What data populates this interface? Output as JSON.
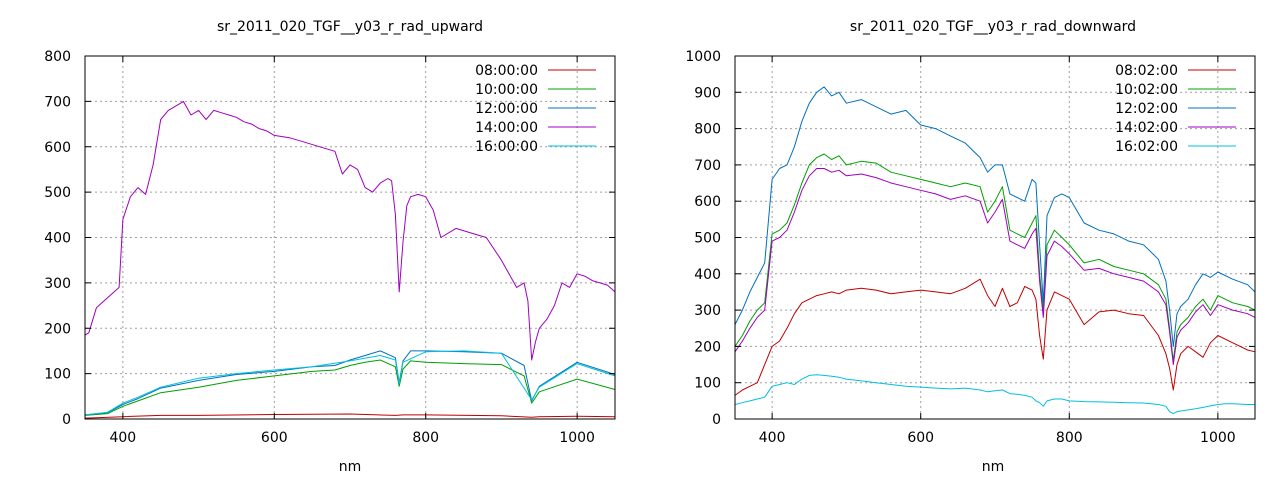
{
  "chart_data": [
    {
      "type": "line",
      "title": "sr_2011_020_TGF__y03_r_rad_upward",
      "xlabel": "nm",
      "ylabel": "",
      "xlim": [
        350,
        1050
      ],
      "ylim": [
        0,
        800
      ],
      "xticks": [
        400,
        600,
        800,
        1000
      ],
      "yticks": [
        0,
        100,
        200,
        300,
        400,
        500,
        600,
        700,
        800
      ],
      "grid": true,
      "legend_position": "top-right",
      "series": [
        {
          "name": "08:00:00",
          "color": "#c00000",
          "x": [
            350,
            400,
            450,
            500,
            600,
            700,
            760,
            770,
            800,
            900,
            940,
            950,
            1000,
            1050
          ],
          "y": [
            2,
            5,
            8,
            8,
            10,
            11,
            8,
            9,
            9,
            7,
            4,
            5,
            6,
            5
          ]
        },
        {
          "name": "10:00:00",
          "color": "#00a000",
          "x": [
            350,
            380,
            400,
            420,
            450,
            500,
            550,
            600,
            650,
            680,
            700,
            720,
            740,
            760,
            765,
            770,
            780,
            800,
            850,
            900,
            930,
            940,
            950,
            1000,
            1050
          ],
          "y": [
            8,
            12,
            28,
            40,
            58,
            70,
            85,
            95,
            105,
            108,
            118,
            125,
            130,
            115,
            72,
            110,
            128,
            125,
            122,
            120,
            95,
            35,
            60,
            88,
            65
          ]
        },
        {
          "name": "12:00:00",
          "color": "#0070c0",
          "x": [
            350,
            380,
            400,
            420,
            450,
            500,
            550,
            600,
            650,
            680,
            700,
            720,
            740,
            760,
            765,
            770,
            780,
            800,
            850,
            900,
            930,
            940,
            950,
            1000,
            1050
          ],
          "y": [
            9,
            14,
            32,
            45,
            68,
            85,
            98,
            105,
            115,
            118,
            130,
            140,
            150,
            135,
            80,
            128,
            150,
            150,
            148,
            145,
            118,
            40,
            72,
            125,
            98
          ]
        },
        {
          "name": "14:00:00",
          "color": "#a000c0",
          "x": [
            350,
            355,
            365,
            375,
            385,
            395,
            400,
            410,
            420,
            430,
            440,
            450,
            460,
            470,
            480,
            490,
            500,
            510,
            520,
            530,
            540,
            550,
            560,
            570,
            580,
            590,
            600,
            620,
            640,
            660,
            680,
            690,
            700,
            710,
            720,
            730,
            740,
            750,
            755,
            760,
            765,
            770,
            775,
            780,
            790,
            800,
            810,
            820,
            840,
            860,
            880,
            900,
            910,
            920,
            930,
            935,
            940,
            945,
            950,
            960,
            970,
            980,
            990,
            1000,
            1010,
            1020,
            1030,
            1040,
            1050
          ],
          "y": [
            185,
            190,
            245,
            260,
            275,
            290,
            440,
            490,
            510,
            495,
            560,
            660,
            680,
            690,
            700,
            670,
            680,
            660,
            680,
            675,
            670,
            665,
            655,
            650,
            640,
            635,
            625,
            620,
            610,
            600,
            590,
            540,
            560,
            550,
            510,
            500,
            520,
            530,
            525,
            450,
            280,
            390,
            470,
            490,
            495,
            490,
            460,
            400,
            420,
            410,
            400,
            350,
            320,
            290,
            300,
            260,
            130,
            170,
            200,
            220,
            250,
            300,
            290,
            320,
            315,
            305,
            300,
            295,
            280
          ]
        },
        {
          "name": "16:00:00",
          "color": "#00c0e0",
          "x": [
            350,
            380,
            400,
            420,
            450,
            500,
            550,
            600,
            650,
            700,
            740,
            760,
            765,
            770,
            800,
            850,
            900,
            940,
            950,
            1000,
            1050
          ],
          "y": [
            9,
            15,
            35,
            48,
            70,
            90,
            100,
            108,
            115,
            128,
            140,
            130,
            78,
            125,
            148,
            150,
            145,
            42,
            70,
            122,
            95
          ]
        }
      ]
    },
    {
      "type": "line",
      "title": "sr_2011_020_TGF__y03_r_rad_downward",
      "xlabel": "nm",
      "ylabel": "",
      "xlim": [
        350,
        1050
      ],
      "ylim": [
        0,
        1000
      ],
      "xticks": [
        400,
        600,
        800,
        1000
      ],
      "yticks": [
        0,
        100,
        200,
        300,
        400,
        500,
        600,
        700,
        800,
        900,
        1000
      ],
      "grid": true,
      "legend_position": "top-right",
      "series": [
        {
          "name": "08:02:00",
          "color": "#c00000",
          "x": [
            350,
            360,
            370,
            380,
            390,
            400,
            410,
            420,
            430,
            440,
            450,
            460,
            470,
            480,
            490,
            500,
            520,
            540,
            560,
            580,
            600,
            620,
            640,
            660,
            680,
            690,
            700,
            710,
            720,
            730,
            740,
            750,
            755,
            760,
            765,
            770,
            780,
            790,
            800,
            820,
            840,
            860,
            880,
            900,
            920,
            930,
            935,
            940,
            945,
            950,
            960,
            970,
            980,
            990,
            1000,
            1020,
            1040,
            1050
          ],
          "y": [
            65,
            80,
            90,
            100,
            150,
            200,
            215,
            250,
            290,
            320,
            330,
            340,
            345,
            350,
            345,
            355,
            360,
            355,
            345,
            350,
            355,
            350,
            345,
            360,
            385,
            340,
            310,
            360,
            310,
            320,
            365,
            355,
            330,
            230,
            165,
            300,
            350,
            340,
            330,
            260,
            295,
            300,
            290,
            285,
            230,
            180,
            140,
            80,
            150,
            180,
            200,
            185,
            170,
            210,
            230,
            210,
            190,
            185
          ]
        },
        {
          "name": "10:02:00",
          "color": "#00a000",
          "x": [
            350,
            360,
            370,
            380,
            390,
            400,
            410,
            420,
            430,
            440,
            450,
            460,
            470,
            480,
            490,
            500,
            520,
            540,
            560,
            580,
            600,
            620,
            640,
            660,
            680,
            690,
            700,
            710,
            720,
            730,
            740,
            750,
            755,
            760,
            765,
            770,
            780,
            790,
            800,
            820,
            840,
            860,
            880,
            900,
            920,
            930,
            935,
            940,
            945,
            950,
            960,
            970,
            980,
            990,
            1000,
            1020,
            1040,
            1050
          ],
          "y": [
            200,
            230,
            270,
            300,
            320,
            510,
            520,
            540,
            590,
            650,
            700,
            720,
            730,
            715,
            725,
            700,
            710,
            705,
            680,
            670,
            660,
            650,
            640,
            650,
            640,
            570,
            600,
            640,
            520,
            510,
            500,
            540,
            560,
            400,
            300,
            480,
            520,
            500,
            480,
            430,
            440,
            420,
            410,
            400,
            370,
            330,
            250,
            160,
            240,
            260,
            280,
            310,
            330,
            300,
            340,
            320,
            310,
            300
          ]
        },
        {
          "name": "12:02:00",
          "color": "#0070c0",
          "x": [
            350,
            360,
            370,
            380,
            390,
            400,
            410,
            420,
            430,
            440,
            450,
            460,
            470,
            480,
            490,
            500,
            520,
            540,
            560,
            580,
            600,
            620,
            640,
            660,
            680,
            690,
            700,
            710,
            720,
            730,
            740,
            750,
            755,
            760,
            765,
            770,
            780,
            790,
            800,
            820,
            840,
            860,
            880,
            900,
            920,
            930,
            935,
            940,
            945,
            950,
            960,
            970,
            980,
            990,
            1000,
            1020,
            1040,
            1050
          ],
          "y": [
            260,
            300,
            350,
            390,
            430,
            660,
            690,
            700,
            750,
            820,
            870,
            900,
            915,
            890,
            900,
            870,
            880,
            860,
            840,
            850,
            810,
            800,
            780,
            760,
            720,
            680,
            700,
            700,
            620,
            610,
            600,
            660,
            650,
            480,
            320,
            560,
            610,
            620,
            610,
            540,
            520,
            510,
            490,
            480,
            440,
            380,
            300,
            200,
            290,
            310,
            330,
            370,
            400,
            390,
            405,
            385,
            370,
            350
          ]
        },
        {
          "name": "14:02:00",
          "color": "#a000c0",
          "x": [
            350,
            360,
            370,
            380,
            390,
            400,
            410,
            420,
            430,
            440,
            450,
            460,
            470,
            480,
            490,
            500,
            520,
            540,
            560,
            580,
            600,
            620,
            640,
            660,
            680,
            690,
            700,
            710,
            720,
            730,
            740,
            750,
            755,
            760,
            765,
            770,
            780,
            790,
            800,
            820,
            840,
            860,
            880,
            900,
            920,
            930,
            935,
            940,
            945,
            950,
            960,
            970,
            980,
            990,
            1000,
            1020,
            1040,
            1050
          ],
          "y": [
            185,
            215,
            250,
            280,
            300,
            490,
            500,
            520,
            570,
            630,
            670,
            690,
            690,
            680,
            685,
            670,
            675,
            665,
            650,
            640,
            630,
            620,
            605,
            615,
            600,
            540,
            570,
            605,
            490,
            480,
            470,
            510,
            525,
            380,
            280,
            450,
            490,
            475,
            455,
            410,
            415,
            400,
            390,
            380,
            350,
            315,
            240,
            150,
            225,
            245,
            265,
            295,
            315,
            285,
            315,
            300,
            290,
            280
          ]
        },
        {
          "name": "16:02:00",
          "color": "#00c0e0",
          "x": [
            350,
            360,
            370,
            380,
            390,
            400,
            410,
            420,
            430,
            440,
            450,
            460,
            470,
            480,
            490,
            500,
            520,
            540,
            560,
            580,
            600,
            620,
            640,
            660,
            680,
            690,
            700,
            710,
            720,
            730,
            740,
            750,
            755,
            760,
            765,
            770,
            780,
            790,
            800,
            820,
            840,
            860,
            880,
            900,
            920,
            930,
            935,
            940,
            945,
            950,
            960,
            970,
            980,
            990,
            1000,
            1010,
            1020,
            1030,
            1040,
            1050
          ],
          "y": [
            40,
            45,
            50,
            55,
            60,
            90,
            95,
            100,
            95,
            110,
            120,
            122,
            120,
            118,
            115,
            110,
            105,
            100,
            95,
            90,
            88,
            85,
            83,
            85,
            80,
            75,
            78,
            80,
            70,
            68,
            65,
            60,
            50,
            45,
            35,
            50,
            55,
            55,
            50,
            48,
            47,
            46,
            45,
            44,
            40,
            35,
            20,
            15,
            20,
            22,
            25,
            28,
            32,
            36,
            40,
            42,
            42,
            41,
            40,
            40
          ]
        }
      ]
    }
  ]
}
